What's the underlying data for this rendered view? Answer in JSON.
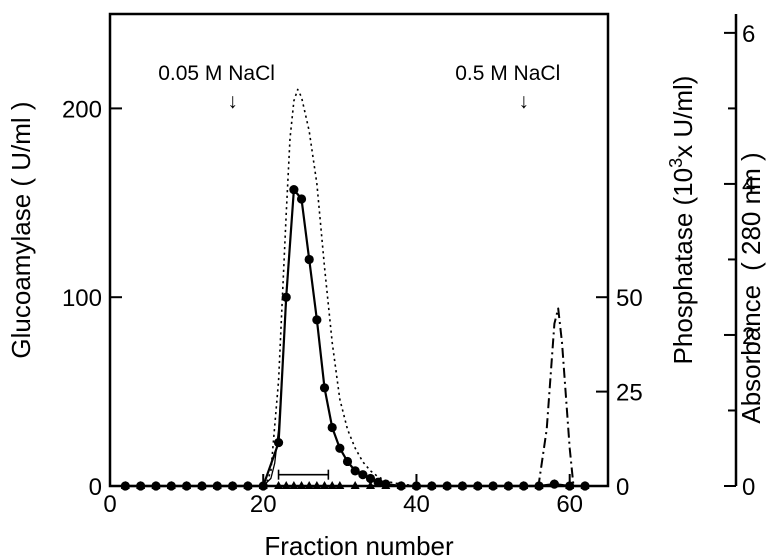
{
  "chart_data": {
    "type": "line",
    "title": "",
    "xlabel": "Fraction number",
    "ylabel": "Glucoamylase ( U/ml )",
    "y2label_main": "Phosphatase (10",
    "y2label_sup": "3",
    "y2label_tail": "x U/ml)",
    "y3label_main": "Absorbance",
    "y3label_unit": "( 280 nm )",
    "xlim": [
      0,
      65
    ],
    "ylim": [
      0,
      250
    ],
    "y2lim": [
      0,
      125
    ],
    "y3lim": [
      0,
      6.25
    ],
    "x_ticks": [
      0,
      20,
      40,
      60
    ],
    "y_ticks": [
      0,
      100,
      200
    ],
    "y2_ticks": [
      0,
      25,
      50
    ],
    "y3_ticks": [
      0,
      2,
      4,
      6
    ],
    "grid": false,
    "legend": "none",
    "annotations": [
      {
        "text": "0.05 M NaCl",
        "x": 16,
        "arrow": "↓"
      },
      {
        "text": "0.5 M NaCl",
        "x": 54,
        "arrow": "↓"
      }
    ],
    "pooled_bar": {
      "x_start": 22,
      "x_end": 28.5,
      "y": 6
    },
    "series": [
      {
        "axis": "glucoamylase",
        "style": "solid-dots",
        "x": [
          2,
          4,
          6,
          8,
          10,
          12,
          14,
          16,
          18,
          20,
          22,
          23,
          24,
          25,
          26,
          27,
          28,
          29,
          30,
          31,
          32,
          33,
          34,
          35,
          36,
          38,
          40,
          42,
          44,
          46,
          48,
          50,
          52,
          54,
          56,
          58,
          60,
          62
        ],
        "y": [
          0,
          0,
          0,
          0,
          0,
          0,
          0,
          0,
          0,
          0,
          23,
          100,
          157,
          152,
          120,
          88,
          52,
          31,
          20,
          13,
          8,
          6,
          4,
          2,
          1,
          0,
          0,
          0,
          0,
          0,
          0,
          0,
          0,
          0,
          0,
          1,
          0,
          0
        ]
      },
      {
        "axis": "phosphatase",
        "style": "triangles",
        "x": [
          2,
          4,
          6,
          8,
          10,
          12,
          14,
          16,
          18,
          20,
          22,
          23,
          24,
          25,
          26,
          27,
          28,
          29,
          30,
          32,
          34,
          36,
          38,
          40,
          42,
          44,
          46,
          48,
          50,
          52,
          54,
          56,
          58,
          60,
          62
        ],
        "y": [
          0,
          0,
          0,
          0,
          0,
          0,
          0,
          0,
          0,
          0,
          0,
          0,
          0,
          0,
          0,
          0,
          0,
          0,
          0,
          0,
          0,
          0,
          0,
          0,
          0,
          0,
          0,
          0,
          0,
          0,
          0,
          0,
          0.5,
          0,
          0
        ]
      },
      {
        "axis": "absorbance",
        "style": "dotted",
        "x": [
          20,
          20.5,
          21,
          22,
          23,
          23.5,
          24,
          24.5,
          25,
          26,
          27,
          28,
          29,
          30,
          31,
          32,
          33,
          34,
          35,
          36,
          37,
          40,
          50,
          60,
          64
        ],
        "y": [
          0,
          0.06,
          0.2,
          1.4,
          3.6,
          4.6,
          5.1,
          5.25,
          5.15,
          4.7,
          4.0,
          2.9,
          1.9,
          1.15,
          0.75,
          0.5,
          0.32,
          0.2,
          0.12,
          0.07,
          0.04,
          0,
          0,
          0,
          0
        ]
      },
      {
        "axis": "phosphatase",
        "style": "dash-dot",
        "x": [
          55.5,
          56,
          57,
          58,
          58.5,
          59,
          60,
          60.5
        ],
        "y": [
          0,
          1,
          15,
          43,
          47,
          38,
          10,
          0
        ]
      },
      {
        "axis": "glucoamylase",
        "style": "solid-thin",
        "x": [
          20,
          21,
          21.5,
          22,
          22.5,
          23
        ],
        "y": [
          0,
          4,
          12,
          30,
          62,
          98
        ]
      }
    ]
  }
}
